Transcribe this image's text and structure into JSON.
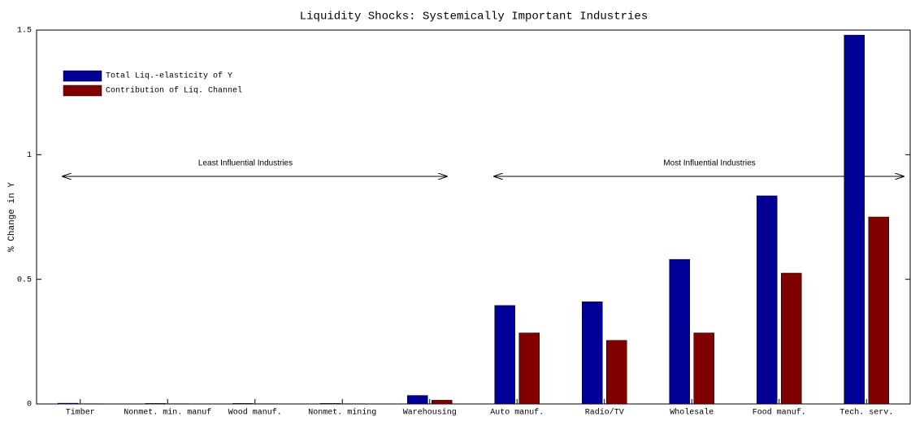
{
  "chart_data": {
    "type": "bar",
    "title": "Liquidity Shocks: Systemically Important Industries",
    "y_label": "% Change in Y",
    "categories": [
      "Timber",
      "Nonmet. min. manuf",
      "Wood manuf.",
      "Nonmet. mining",
      "Warehousing",
      "Auto manuf.",
      "Radio/TV",
      "Wholesale",
      "Food manuf.",
      "Tech. serv."
    ],
    "series": [
      {
        "name": "Total Liq.-elasticity of Y",
        "color": "#000096",
        "values": [
          0.003,
          0.002,
          0.002,
          0.002,
          0.034,
          0.395,
          0.41,
          0.58,
          0.835,
          1.48
        ]
      },
      {
        "name": "Contribution of Liq. Channel",
        "color": "#800000",
        "values": [
          0.001,
          0.001,
          0.001,
          0.001,
          0.015,
          0.285,
          0.255,
          0.285,
          0.525,
          0.75
        ]
      }
    ],
    "annotations": [
      "Least Influential Industries",
      "Most Influential Industries"
    ],
    "ylim": [
      0,
      1.5
    ],
    "yticks": [
      0,
      0.5,
      1,
      1.5
    ],
    "legend": "upper left"
  }
}
